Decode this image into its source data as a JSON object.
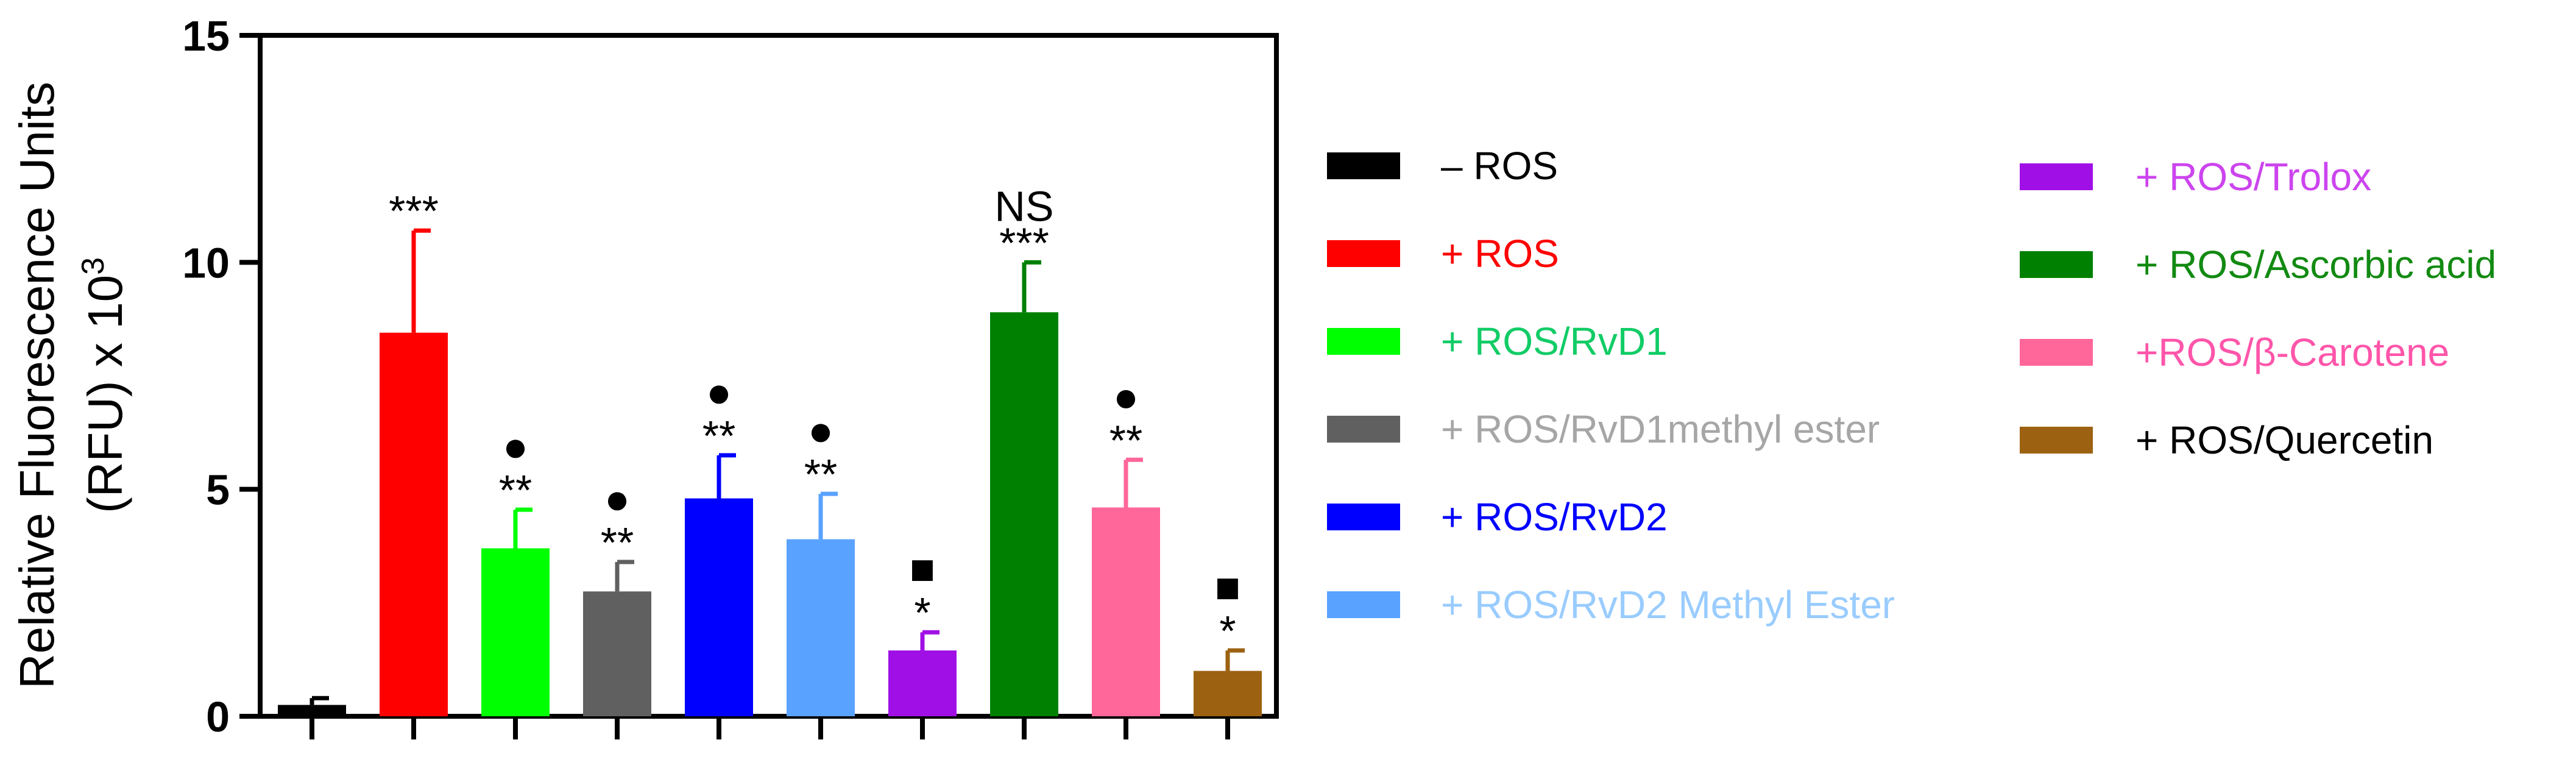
{
  "chart_data": {
    "type": "bar",
    "ylabel_line1": "Relative Fluorescence Units",
    "ylabel_line2": "(RFU) x 10",
    "ylabel_exp": "3",
    "ylim": [
      0,
      15
    ],
    "yticks": [
      {
        "value": 0,
        "label": "0"
      },
      {
        "value": 5,
        "label": "5"
      },
      {
        "value": 10,
        "label": "10"
      },
      {
        "value": 15,
        "label": "15"
      }
    ],
    "bars": [
      {
        "name": "– ROS",
        "value": 0.25,
        "error": 0.15,
        "color": "#000000",
        "text_color": "#000000",
        "sig": "",
        "marker": ""
      },
      {
        "name": "+ ROS",
        "value": 8.45,
        "error": 2.25,
        "color": "#ff0000",
        "text_color": "#ff0000",
        "sig": "***",
        "marker": ""
      },
      {
        "name": "+ ROS/RvD1",
        "value": 3.7,
        "error": 0.85,
        "color": "#00ff00",
        "text_color": "#11cc66",
        "sig": "**",
        "marker": "●"
      },
      {
        "name": "+ ROS/RvD1methyl ester",
        "value": 2.75,
        "error": 0.65,
        "color": "#606060",
        "text_color": "#a6a6a6",
        "sig": "**",
        "marker": "●"
      },
      {
        "name": "+ ROS/RvD2",
        "value": 4.8,
        "error": 0.95,
        "color": "#0000ff",
        "text_color": "#0000ff",
        "sig": "**",
        "marker": "●"
      },
      {
        "name": "+ ROS/RvD2 Methyl Ester",
        "value": 3.9,
        "error": 1.0,
        "color": "#5aa2ff",
        "text_color": "#99ccff",
        "sig": "**",
        "marker": "●"
      },
      {
        "name": "+ ROS/Trolox",
        "value": 1.45,
        "error": 0.4,
        "color": "#a010e6",
        "text_color": "#cc44ee",
        "sig": "*",
        "marker": "■"
      },
      {
        "name": "+ ROS/Ascorbic acid",
        "value": 8.9,
        "error": 1.1,
        "color": "#008000",
        "text_color": "#128a12",
        "sig": "***",
        "marker": "NS"
      },
      {
        "name": "+ROS/β-Carotene",
        "value": 4.6,
        "error": 1.05,
        "color": "#ff6699",
        "text_color": "#ff55aa",
        "sig": "**",
        "marker": "●"
      },
      {
        "name": "+ ROS/Quercetin",
        "value": 1.0,
        "error": 0.45,
        "color": "#9c6212",
        "text_color": "#000000",
        "sig": "*",
        "marker": "■"
      }
    ]
  }
}
